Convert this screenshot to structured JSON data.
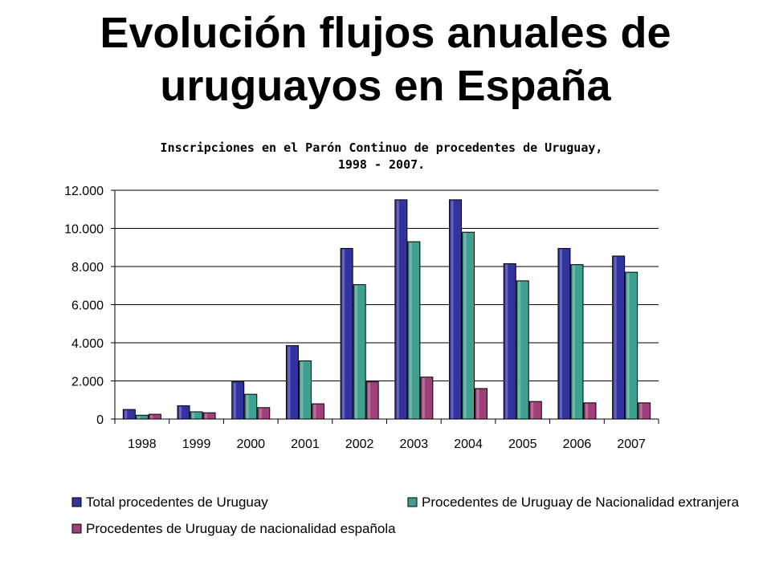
{
  "slide": {
    "title_line1": "Evolución flujos anuales de",
    "title_line2": "uruguayos en España"
  },
  "chart_data": {
    "type": "bar",
    "title_line1": "Inscripciones en el Parón Continuo de procedentes de Uruguay,",
    "title_line2": "1998 - 2007.",
    "categories": [
      "1998",
      "1999",
      "2000",
      "2001",
      "2002",
      "2003",
      "2004",
      "2005",
      "2006",
      "2007"
    ],
    "series": [
      {
        "name": "Total procedentes de Uruguay",
        "color": "#3333a0",
        "values": [
          500,
          700,
          1950,
          3850,
          8950,
          11500,
          11500,
          8150,
          8950,
          8550
        ]
      },
      {
        "name": "Procedentes de Uruguay de Nacionalidad extranjera",
        "color": "#40a090",
        "values": [
          200,
          380,
          1300,
          3050,
          7050,
          9300,
          9800,
          7250,
          8100,
          7700
        ]
      },
      {
        "name": "Procedentes de Uruguay de nacionalidad española",
        "color": "#a0407a",
        "values": [
          250,
          330,
          600,
          800,
          1950,
          2200,
          1600,
          920,
          850,
          850
        ]
      }
    ],
    "yticks": [
      "0",
      "2.000",
      "4.000",
      "6.000",
      "8.000",
      "10.000",
      "12.000"
    ],
    "ylim": [
      0,
      12000
    ],
    "grid": true,
    "legend_position": "bottom"
  }
}
